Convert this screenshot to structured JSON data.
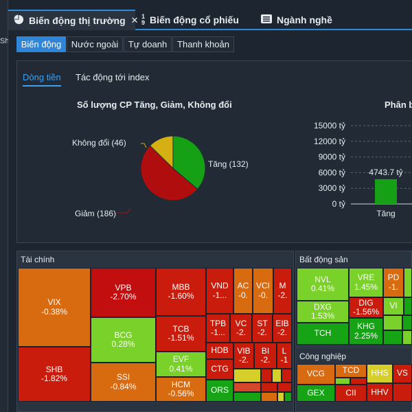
{
  "left_strip": {
    "label": "Sh"
  },
  "tabs": [
    {
      "label": "Biến động thị trường",
      "icon": "pie-chart-icon",
      "active": true,
      "close": "✕"
    },
    {
      "label": "Biến động cổ phiếu",
      "icon": "sort-icon",
      "sort_top": "1",
      "sort_bottom": "9",
      "active": false
    },
    {
      "label": "Ngành nghề",
      "icon": "list-icon",
      "active": false
    }
  ],
  "subtabs": [
    "Biến động",
    "Nước ngoài",
    "Tự doanh",
    "Thanh khoản"
  ],
  "panel": {
    "tabs": [
      "Dòng tiền",
      "Tác động tới index"
    ],
    "pie_title": "Số lượng CP Tăng, Giảm, Không đổi",
    "bar_title": "Phân b",
    "pie_labels": [
      "Tăng (132)",
      "Giảm (186)",
      "Không đổi (46)"
    ]
  },
  "chart_data": [
    {
      "type": "pie",
      "title": "Số lượng CP Tăng, Giảm, Không đổi",
      "categories": [
        "Tăng",
        "Giảm",
        "Không đổi"
      ],
      "values": [
        132,
        186,
        46
      ],
      "colors": [
        "#15a015",
        "#b00e0e",
        "#d4b012"
      ]
    },
    {
      "type": "bar",
      "title": "Phân b",
      "categories": [
        "Tăng"
      ],
      "values": [
        4743.7
      ],
      "value_labels": [
        "4743.7 tỷ"
      ],
      "ytick_labels": [
        "15000 tỷ",
        "12000 tỷ",
        "9000 tỷ",
        "6000 tỷ",
        "3000 tỷ",
        "0 tỷ"
      ],
      "ylim": [
        0,
        15000
      ],
      "color": "#15a015"
    }
  ],
  "treemap": {
    "sections": [
      "Tài chính",
      "Bất động sản",
      "Công nghiệp"
    ],
    "finance_cells": [
      {
        "symbol": "VIX",
        "pct": "-0.38%"
      },
      {
        "symbol": "SHB",
        "pct": "-1.82%"
      },
      {
        "symbol": "VPB",
        "pct": "-2.70%"
      },
      {
        "symbol": "BCG",
        "pct": "0.28%"
      },
      {
        "symbol": "SSI",
        "pct": "-0.84%"
      },
      {
        "symbol": "MBB",
        "pct": "-1.60%"
      },
      {
        "symbol": "TCB",
        "pct": "-1.51%"
      },
      {
        "symbol": "EVF",
        "pct": "0.41%"
      },
      {
        "symbol": "HCM",
        "pct": "-0.56%"
      },
      {
        "symbol": "VND",
        "pct": "-1..."
      },
      {
        "symbol": "AC",
        "pct": "-0."
      },
      {
        "symbol": "VCI",
        "pct": "-0."
      },
      {
        "symbol": "M",
        "pct": "-2."
      },
      {
        "symbol": "TPB",
        "pct": "-1..."
      },
      {
        "symbol": "VC",
        "pct": "-2."
      },
      {
        "symbol": "ST",
        "pct": "-2."
      },
      {
        "symbol": "EIB",
        "pct": "-2."
      },
      {
        "symbol": "HDB",
        "pct": ""
      },
      {
        "symbol": "VIB",
        "pct": "-2."
      },
      {
        "symbol": "BI",
        "pct": "-2."
      },
      {
        "symbol": "L",
        "pct": "-1"
      },
      {
        "symbol": "CTG",
        "pct": ""
      },
      {
        "symbol": "ORS",
        "pct": ""
      }
    ],
    "realestate_cells": [
      {
        "symbol": "NVL",
        "pct": "0.41%"
      },
      {
        "symbol": "VRE",
        "pct": "1.45%"
      },
      {
        "symbol": "PD",
        "pct": "-1."
      },
      {
        "symbol": "DXG",
        "pct": "1.53%"
      },
      {
        "symbol": "DIG",
        "pct": "-1.56%"
      },
      {
        "symbol": "VI",
        "pct": ""
      },
      {
        "symbol": "TCH",
        "pct": ""
      },
      {
        "symbol": "KHG",
        "pct": "2.25%"
      }
    ],
    "industry_cells": [
      {
        "symbol": "VCG",
        "pct": ""
      },
      {
        "symbol": "TCD",
        "pct": ""
      },
      {
        "symbol": "HHS",
        "pct": ""
      },
      {
        "symbol": "VS",
        "pct": ""
      },
      {
        "symbol": "GEX",
        "pct": ""
      },
      {
        "symbol": "CII",
        "pct": ""
      },
      {
        "symbol": "HHV",
        "pct": ""
      }
    ],
    "colors": {
      "orange": "#d86a10",
      "red": "#c91c0c",
      "darkred": "#a80f0f",
      "lightgreen": "#7ad12a",
      "green": "#16a316",
      "yellow": "#d6cf2a",
      "salmon": "#d5472a"
    }
  }
}
